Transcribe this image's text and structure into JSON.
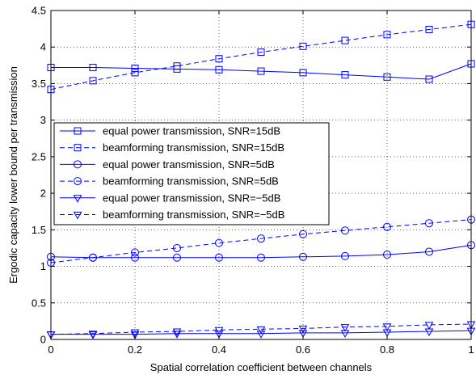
{
  "chart_data": {
    "type": "line",
    "title": "",
    "xlabel": "Spatial correlation coefficient between channels",
    "ylabel": "Ergodic capacity lower bound per transmission",
    "xlim": [
      0,
      1
    ],
    "ylim": [
      0,
      4.5
    ],
    "x_ticks": [
      "0",
      "0.2",
      "0.4",
      "0.6",
      "0.8",
      "1"
    ],
    "y_ticks": [
      "0",
      "0.5",
      "1",
      "1.5",
      "2",
      "2.5",
      "3",
      "3.5",
      "4",
      "4.5"
    ],
    "grid": true,
    "legend_position": "center-left",
    "line_color": "#0000ff",
    "x": [
      0,
      0.1,
      0.2,
      0.3,
      0.4,
      0.5,
      0.6,
      0.7,
      0.8,
      0.9,
      1.0
    ],
    "series": [
      {
        "name": "equal power transmission, SNR=15dB",
        "marker": "square",
        "dash": "solid",
        "values": [
          3.72,
          3.72,
          3.71,
          3.7,
          3.69,
          3.67,
          3.65,
          3.62,
          3.59,
          3.56,
          3.77
        ]
      },
      {
        "name": "beamforming transmission, SNR=15dB",
        "marker": "square",
        "dash": "dashed",
        "values": [
          3.42,
          3.54,
          3.65,
          3.74,
          3.84,
          3.93,
          4.01,
          4.09,
          4.17,
          4.24,
          4.31
        ]
      },
      {
        "name": "equal power transmission, SNR=5dB",
        "marker": "circle",
        "dash": "solid",
        "values": [
          1.13,
          1.12,
          1.12,
          1.12,
          1.12,
          1.12,
          1.13,
          1.14,
          1.16,
          1.2,
          1.29
        ]
      },
      {
        "name": "beamforming transmission, SNR=5dB",
        "marker": "circle",
        "dash": "dashed",
        "values": [
          1.05,
          1.12,
          1.19,
          1.25,
          1.32,
          1.38,
          1.44,
          1.49,
          1.54,
          1.59,
          1.64
        ]
      },
      {
        "name": "equal power transmission, SNR=−5dB",
        "marker": "triangle-down",
        "dash": "solid",
        "values": [
          0.07,
          0.07,
          0.07,
          0.08,
          0.08,
          0.08,
          0.09,
          0.09,
          0.1,
          0.11,
          0.12
        ]
      },
      {
        "name": "beamforming transmission, SNR=−5dB",
        "marker": "triangle-down",
        "dash": "dashed",
        "values": [
          0.07,
          0.08,
          0.1,
          0.11,
          0.13,
          0.14,
          0.15,
          0.17,
          0.18,
          0.2,
          0.21
        ]
      }
    ]
  }
}
